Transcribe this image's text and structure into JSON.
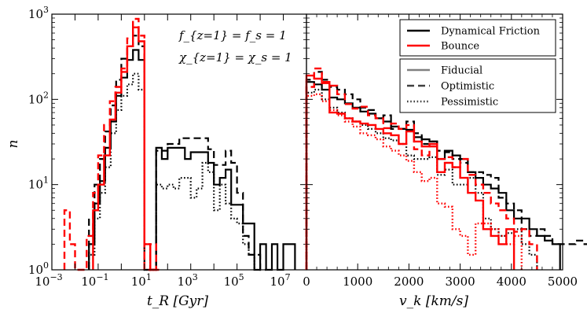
{
  "chart_data": [
    {
      "type": "line",
      "step": true,
      "xscale": "log",
      "yscale": "log",
      "xlim": [
        0.001,
        100000000
      ],
      "ylim": [
        1,
        1000
      ],
      "xlabel": "t_R  [Gyr]",
      "ylabel": "n",
      "x_tick_labels": [
        {
          "value": 0.001,
          "base": "10",
          "exp": "−3"
        },
        {
          "value": 0.1,
          "base": "10",
          "exp": "−1"
        },
        {
          "value": 10,
          "base": "10",
          "exp": "1"
        },
        {
          "value": 1000,
          "base": "10",
          "exp": "3"
        },
        {
          "value": 100000,
          "base": "10",
          "exp": "5"
        },
        {
          "value": 10000000,
          "base": "10",
          "exp": "7"
        }
      ],
      "y_tick_labels": [
        {
          "value": 1,
          "base": "10",
          "exp": "0"
        },
        {
          "value": 10,
          "base": "10",
          "exp": "1"
        },
        {
          "value": 100,
          "base": "10",
          "exp": "2"
        },
        {
          "value": 1000,
          "base": "10",
          "exp": "3"
        }
      ],
      "annotations": [
        "f_{z=1} = f_s = 1",
        "χ_{z=1} = χ_s = 1"
      ],
      "series": [
        {
          "color": "#000000",
          "dash": "solid",
          "edges": [
            0.04,
            0.07,
            0.12,
            0.2,
            0.35,
            0.6,
            1,
            1.8,
            3.2,
            5.6,
            10,
            18,
            32,
            56,
            100,
            180,
            320,
            560,
            1000,
            1800,
            3200,
            5600,
            10000,
            18000,
            32000,
            56000,
            100000,
            180000,
            320000,
            560000,
            1000000,
            1800000,
            3200000,
            5600000,
            10000000,
            18000000,
            32000000
          ],
          "values": [
            2,
            6,
            11,
            27,
            55,
            110,
            180,
            290,
            380,
            290,
            1,
            1,
            27,
            20,
            27,
            27,
            27,
            20,
            24,
            24,
            24,
            18,
            10,
            12,
            15,
            5.8,
            5.8,
            3.5,
            3.5,
            1,
            2,
            1,
            2,
            1,
            2,
            2
          ]
        },
        {
          "color": "#000000",
          "dash": "dashed",
          "edges": [
            0.04,
            0.07,
            0.12,
            0.2,
            0.35,
            0.6,
            1,
            1.8,
            3.2,
            5.6,
            10,
            18,
            32,
            56,
            100,
            180,
            320,
            560,
            1000,
            1800,
            3200,
            5600,
            10000,
            18000,
            32000,
            56000,
            100000,
            180000,
            320000,
            560000,
            1000000,
            1800000
          ],
          "values": [
            4,
            10,
            20,
            42,
            85,
            170,
            300,
            420,
            560,
            420,
            1,
            1,
            25,
            25,
            30,
            30,
            35,
            35,
            35,
            35,
            35,
            26,
            17,
            17,
            25,
            18,
            8,
            2.5,
            1.5,
            1.5,
            1
          ]
        },
        {
          "color": "#000000",
          "dash": "dotted",
          "edges": [
            0.04,
            0.07,
            0.12,
            0.2,
            0.35,
            0.6,
            1,
            1.8,
            3.2,
            5.6,
            10,
            18,
            32,
            56,
            100,
            180,
            320,
            560,
            1000,
            1800,
            3200,
            5600,
            10000,
            18000,
            32000,
            56000,
            100000,
            180000,
            320000,
            560000
          ],
          "values": [
            1.5,
            4,
            8,
            16,
            40,
            75,
            110,
            150,
            200,
            130,
            1,
            1,
            10,
            9,
            10,
            9,
            12,
            12,
            7,
            9,
            18,
            14,
            5,
            10,
            6,
            4,
            3.5,
            2,
            1.5
          ]
        },
        {
          "color": "#ff0000",
          "dash": "solid",
          "edges": [
            0.06,
            0.1,
            0.18,
            0.32,
            0.56,
            1,
            1.8,
            3.2,
            5.6,
            10,
            18,
            32
          ],
          "values": [
            5,
            10,
            22,
            58,
            120,
            210,
            420,
            700,
            480,
            2,
            1
          ]
        },
        {
          "color": "#ff0000",
          "dash": "dashed",
          "edges": [
            0.0035,
            0.006,
            0.01,
            0.018,
            0.032,
            0.06,
            0.1,
            0.18,
            0.32,
            0.56,
            1,
            1.8,
            3.2,
            5.6,
            10,
            18,
            32,
            56
          ],
          "values": [
            5,
            2,
            1,
            1,
            2.5,
            8,
            22,
            50,
            95,
            140,
            230,
            520,
            880,
            560,
            1,
            2,
            1
          ]
        },
        {
          "color": "#ff0000",
          "dash": "dotted",
          "edges": [
            10,
            18,
            32
          ],
          "values": [
            2,
            1
          ]
        }
      ]
    },
    {
      "type": "line",
      "step": true,
      "xscale": "linear",
      "yscale": "log",
      "xlim": [
        0,
        5000
      ],
      "ylim": [
        1,
        1000
      ],
      "xlabel": "v_k  [km/s]",
      "x_tick_labels": [
        {
          "value": 0,
          "text": "0"
        },
        {
          "value": 1000,
          "text": "1000"
        },
        {
          "value": 2000,
          "text": "2000"
        },
        {
          "value": 3000,
          "text": "3000"
        },
        {
          "value": 4000,
          "text": "4000"
        },
        {
          "value": 5000,
          "text": "5000"
        }
      ],
      "legend": {
        "placement": "top-right",
        "models": [
          {
            "label": "Dynamical Friction",
            "color": "#000000"
          },
          {
            "label": "Bounce",
            "color": "#ff0000"
          }
        ],
        "styles": [
          {
            "label": "Fiducial",
            "dash": "solid",
            "color": "#808080"
          },
          {
            "label": "Optimistic",
            "dash": "dashed",
            "color": "#404040"
          },
          {
            "label": "Pessimistic",
            "dash": "dotted",
            "color": "#404040"
          }
        ]
      },
      "series": [
        {
          "color": "#000000",
          "dash": "solid",
          "edge_start": 0,
          "bin_width": 150,
          "values": [
            160,
            150,
            130,
            105,
            100,
            90,
            80,
            72,
            68,
            60,
            55,
            48,
            45,
            44,
            36,
            34,
            32,
            20,
            25,
            22,
            20,
            14,
            12,
            10,
            9,
            8,
            5,
            4,
            4,
            3,
            2.5,
            2.2,
            2
          ]
        },
        {
          "color": "#000000",
          "dash": "dashed",
          "edge_start": 0,
          "bin_width": 150,
          "values": [
            170,
            210,
            170,
            140,
            130,
            115,
            100,
            80,
            75,
            60,
            65,
            45,
            45,
            55,
            40,
            30,
            32,
            25,
            24,
            20,
            18,
            14,
            14,
            13,
            12,
            7,
            6,
            5,
            3,
            2.5,
            3,
            2.5,
            2,
            2,
            2,
            2.2,
            2,
            2,
            1.5
          ]
        },
        {
          "color": "#000000",
          "dash": "dotted",
          "edge_start": 0,
          "bin_width": 150,
          "values": [
            120,
            130,
            100,
            80,
            70,
            60,
            55,
            50,
            45,
            40,
            35,
            33,
            30,
            22,
            20,
            20,
            21,
            13,
            15,
            10,
            10,
            12,
            8,
            4,
            3,
            2.5,
            2.7,
            3,
            2,
            1.5
          ]
        },
        {
          "color": "#ff0000",
          "dash": "solid",
          "edge_start": 0,
          "bin_width": 150,
          "values": [
            190,
            175,
            155,
            70,
            68,
            60,
            55,
            52,
            50,
            45,
            40,
            38,
            30,
            42,
            32,
            28,
            30,
            14,
            18,
            16,
            12,
            8,
            6.5,
            3,
            2.5,
            2,
            3
          ]
        },
        {
          "color": "#ff0000",
          "dash": "dashed",
          "edge_start": 0,
          "bin_width": 150,
          "values": [
            140,
            230,
            160,
            145,
            115,
            88,
            78,
            82,
            65,
            60,
            46,
            52,
            45,
            50,
            26,
            22,
            28,
            20,
            21,
            16,
            20,
            13,
            10,
            8,
            6,
            5,
            4,
            2.8,
            3,
            2
          ]
        },
        {
          "color": "#ff0000",
          "dash": "dotted",
          "edge_start": 0,
          "bin_width": 150,
          "values": [
            110,
            115,
            95,
            75,
            65,
            55,
            48,
            40,
            38,
            34,
            28,
            25,
            22,
            19,
            14,
            11,
            12,
            6,
            5.5,
            3,
            2.5,
            1.5,
            3.5,
            3.5,
            3,
            2.5,
            2,
            2.5
          ]
        }
      ]
    }
  ]
}
